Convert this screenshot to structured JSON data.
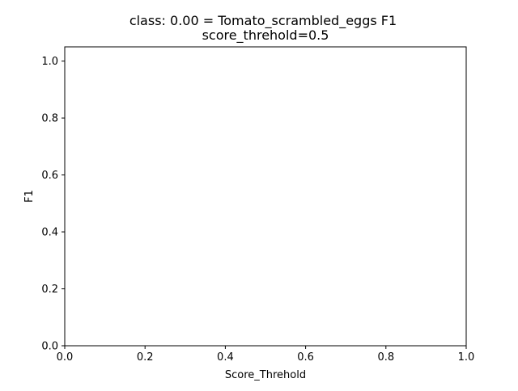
{
  "chart_data": {
    "type": "line",
    "title": "class: 0.00 = Tomato_scrambled_eggs F1",
    "subtitle": "score_threhold=0.5",
    "xlabel": "Score_Threhold",
    "ylabel": "F1",
    "xlim": [
      0.0,
      1.0
    ],
    "ylim": [
      0.0,
      1.05
    ],
    "xticks": [
      "0.0",
      "0.2",
      "0.4",
      "0.6",
      "0.8",
      "1.0"
    ],
    "xtick_values": [
      0.0,
      0.2,
      0.4,
      0.6,
      0.8,
      1.0
    ],
    "yticks": [
      "0.0",
      "0.2",
      "0.4",
      "0.6",
      "0.8",
      "1.0"
    ],
    "ytick_values": [
      0.0,
      0.2,
      0.4,
      0.6,
      0.8,
      1.0
    ],
    "grid": false,
    "series": []
  }
}
